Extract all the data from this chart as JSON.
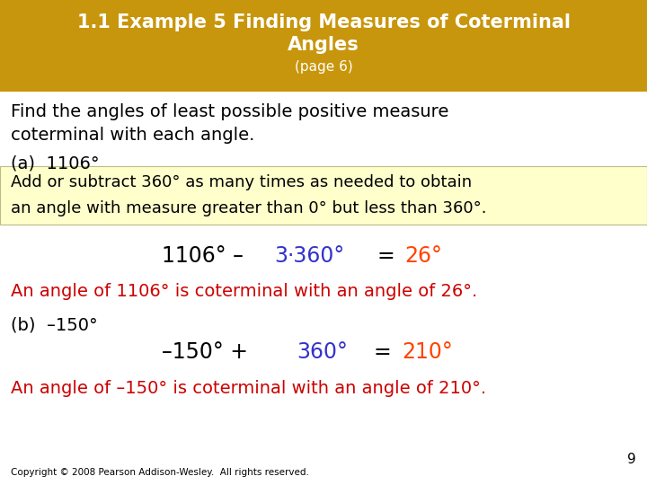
{
  "title_line1": "1.1 Example 5 Finding Measures of Coterminal",
  "title_line2": "Angles",
  "title_line3": "(page 6)",
  "title_bg_color": "#C8960C",
  "title_text_color": "#FFFFFF",
  "body_bg_color": "#FFFFFF",
  "highlight_bg_color": "#FFFFCC",
  "text_color_black": "#000000",
  "text_color_red": "#CC0000",
  "text_color_blue": "#3333CC",
  "text_color_orange": "#FF4400",
  "intro_line1": "Find the angles of least possible positive measure",
  "intro_line2": "coterminal with each angle.",
  "part_a_label": "(a)  1106°",
  "highlight_line1": "Add or subtract 360° as many times as needed to obtain",
  "highlight_line2": "an angle with measure greater than 0° but less than 360°.",
  "conclusion1": "An angle of 1106° is coterminal with an angle of 26°.",
  "part_b_label": "(b)  –150°",
  "conclusion2": "An angle of –150° is coterminal with an angle of 210°.",
  "page_num": "9",
  "copyright": "Copyright © 2008 Pearson Addison-Wesley.  All rights reserved."
}
